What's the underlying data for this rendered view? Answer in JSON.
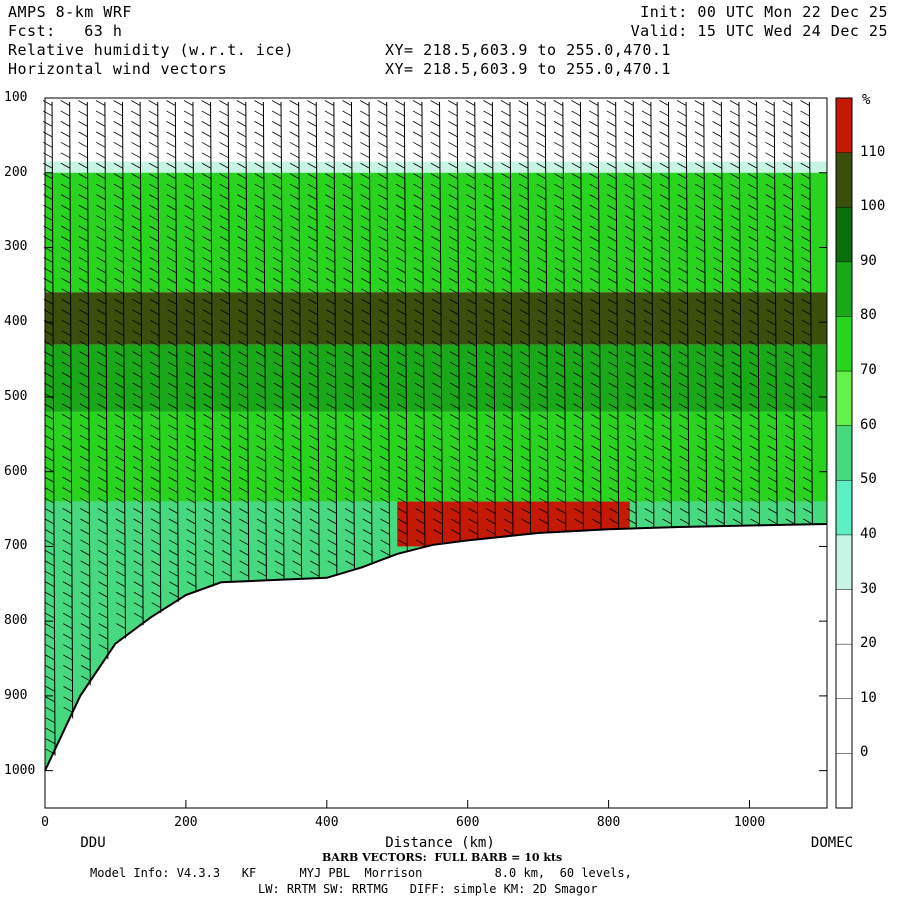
{
  "header": {
    "model": "AMPS 8-km WRF",
    "fcst_label": "Fcst:",
    "fcst_value": "63 h",
    "init": "Init: 00 UTC Mon 22 Dec 25",
    "valid": "Valid: 15 UTC Wed 24 Dec 25",
    "field1": "Relative humidity (w.r.t. ice)",
    "field2": "Horizontal wind vectors",
    "xy1": "XY= 218.5,603.9 to 255.0,470.1",
    "xy2": "XY= 218.5,603.9 to 255.0,470.1"
  },
  "footer": {
    "barb_note": "BARB VECTORS:  FULL BARB = 10 kts",
    "model_info": "Model Info: V4.3.3   KF      MYJ PBL  Morrison          8.0 km,  60 levels,",
    "physics": "LW: RRTM SW: RRTMG   DIFF: simple KM: 2D Smagor"
  },
  "chart_data": {
    "type": "heatmap",
    "title": "Relative humidity (w.r.t. ice)",
    "xlabel": "Distance (km)",
    "ylabel": "",
    "xlim": [
      0,
      1110
    ],
    "ylim": [
      1050,
      100
    ],
    "x_ticks": [
      0,
      200,
      400,
      600,
      800,
      1000
    ],
    "y_ticks": [
      100,
      200,
      300,
      400,
      500,
      600,
      700,
      800,
      900,
      1000
    ],
    "start_label": "DDU",
    "end_label": "DOMEC",
    "colorbar": {
      "unit": "%",
      "levels": [
        0,
        10,
        20,
        30,
        40,
        50,
        60,
        70,
        80,
        90,
        100,
        110
      ],
      "colors": [
        "#ffffff",
        "#ffffff",
        "#ffffff",
        "#ffffff",
        "#c8f5e3",
        "#5ef0c4",
        "#46d97f",
        "#66f04c",
        "#29d41f",
        "#19a817",
        "#0a6e0c",
        "#3b4f0c",
        "#c41a05"
      ]
    },
    "terrain_surface": [
      [
        0,
        1000
      ],
      [
        20,
        960
      ],
      [
        50,
        900
      ],
      [
        100,
        830
      ],
      [
        150,
        795
      ],
      [
        200,
        765
      ],
      [
        250,
        748
      ],
      [
        300,
        746
      ],
      [
        400,
        742
      ],
      [
        450,
        728
      ],
      [
        500,
        710
      ],
      [
        550,
        698
      ],
      [
        600,
        692
      ],
      [
        700,
        682
      ],
      [
        800,
        677
      ],
      [
        900,
        674
      ],
      [
        1000,
        672
      ],
      [
        1110,
        670
      ]
    ],
    "rh_bands": [
      {
        "p": [
          100,
          185
        ],
        "rh": 10
      },
      {
        "p": [
          185,
          200
        ],
        "rh": 35
      },
      {
        "p": [
          200,
          360
        ],
        "rh": 75
      },
      {
        "p": [
          360,
          430
        ],
        "rh": 105
      },
      {
        "p": [
          430,
          520
        ],
        "rh": 80
      },
      {
        "p": [
          520,
          640
        ],
        "rh": 72
      },
      {
        "p": [
          640,
          1050
        ],
        "rh": 55
      }
    ],
    "saturated_layer": {
      "x": [
        500,
        830
      ],
      "p": [
        640,
        700
      ],
      "rh": 112
    },
    "wind_barbs": {
      "x_spacing_km": 25,
      "p_levels": [
        100,
        1000
      ]
    }
  }
}
